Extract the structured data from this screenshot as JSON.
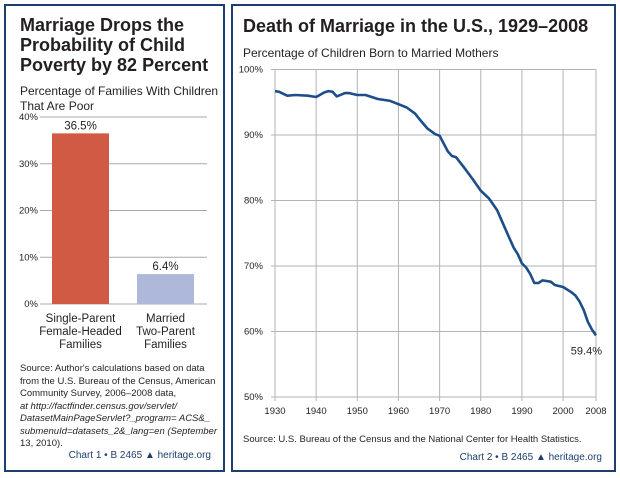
{
  "chart_data": [
    {
      "type": "bar",
      "title": "Marriage Drops the Probability of Child Poverty by 82 Percent",
      "subtitle": "Percentage of Families With Children That Are Poor",
      "categories": [
        "Single-Parent Female-Headed Families",
        "Married Two-Parent Families"
      ],
      "category_lines": [
        [
          "Single-Parent",
          "Female-Headed",
          "Families"
        ],
        [
          "Married",
          "Two-Parent",
          "Families"
        ]
      ],
      "values": [
        36.5,
        6.4
      ],
      "data_labels": [
        "36.5%",
        "6.4%"
      ],
      "colors": [
        "#d05a43",
        "#aeb8da"
      ],
      "ylim": [
        0,
        40
      ],
      "yticks": [
        0,
        10,
        20,
        30,
        40
      ],
      "ytick_labels": [
        "0%",
        "10%",
        "20%",
        "30%",
        "40%"
      ],
      "grid": true,
      "source_label": "Source:",
      "source_lines": [
        "Author's calculations based on data",
        "from the U.S. Bureau of the Census, American",
        "Community Survey, 2006–2008 data,",
        "at http://factfinder.census.gov/servlet/",
        "DatasetMainPageServlet?_program= ACS&_",
        "submenuId=datasets_2&_lang=en (September",
        "13, 2010)."
      ],
      "footer": "Chart 1 • B 2465",
      "footer_site": "heritage.org"
    },
    {
      "type": "line",
      "title": "Death of Marriage in the U.S., 1929–2008",
      "subtitle": "Percentage of Children Born to Married Mothers",
      "x": [
        1930,
        1931,
        1933,
        1935,
        1938,
        1940,
        1942,
        1943,
        1944,
        1945,
        1947,
        1948,
        1950,
        1952,
        1955,
        1958,
        1960,
        1962,
        1964,
        1965,
        1967,
        1969,
        1970,
        1972,
        1973,
        1974,
        1976,
        1978,
        1980,
        1982,
        1984,
        1986,
        1988,
        1989,
        1990,
        1991,
        1992,
        1993,
        1994,
        1995,
        1997,
        1998,
        2000,
        2002,
        2003,
        2004,
        2005,
        2006,
        2007,
        2008
      ],
      "y": [
        96.7,
        96.6,
        96.0,
        96.1,
        96.0,
        95.8,
        96.5,
        96.7,
        96.6,
        95.9,
        96.4,
        96.4,
        96.1,
        96.1,
        95.5,
        95.2,
        94.7,
        94.2,
        93.3,
        92.5,
        91.0,
        90.1,
        89.9,
        87.5,
        86.8,
        86.6,
        85.0,
        83.3,
        81.5,
        80.3,
        78.5,
        75.6,
        72.8,
        71.8,
        70.4,
        69.8,
        68.8,
        67.4,
        67.4,
        67.8,
        67.6,
        67.1,
        66.8,
        66.0,
        65.5,
        64.6,
        63.3,
        61.5,
        60.3,
        59.4
      ],
      "color": "#1d4e89",
      "end_label": "59.4%",
      "xlim": [
        1930,
        2008
      ],
      "xticks": [
        1930,
        1940,
        1950,
        1960,
        1970,
        1980,
        1990,
        2000,
        2008
      ],
      "xtick_labels": [
        "1930",
        "1940",
        "1950",
        "1960",
        "1970",
        "1980",
        "1990",
        "2000",
        "2008"
      ],
      "ylim": [
        50,
        100
      ],
      "yticks": [
        50,
        60,
        70,
        80,
        90,
        100
      ],
      "ytick_labels": [
        "50%",
        "60%",
        "70%",
        "80%",
        "90%",
        "100%"
      ],
      "grid": true,
      "source_label": "Source:",
      "source_text": "U.S. Bureau of the Census and the National Center for Health Statistics.",
      "footer": "Chart 2 • B 2465",
      "footer_site": "heritage.org"
    }
  ]
}
